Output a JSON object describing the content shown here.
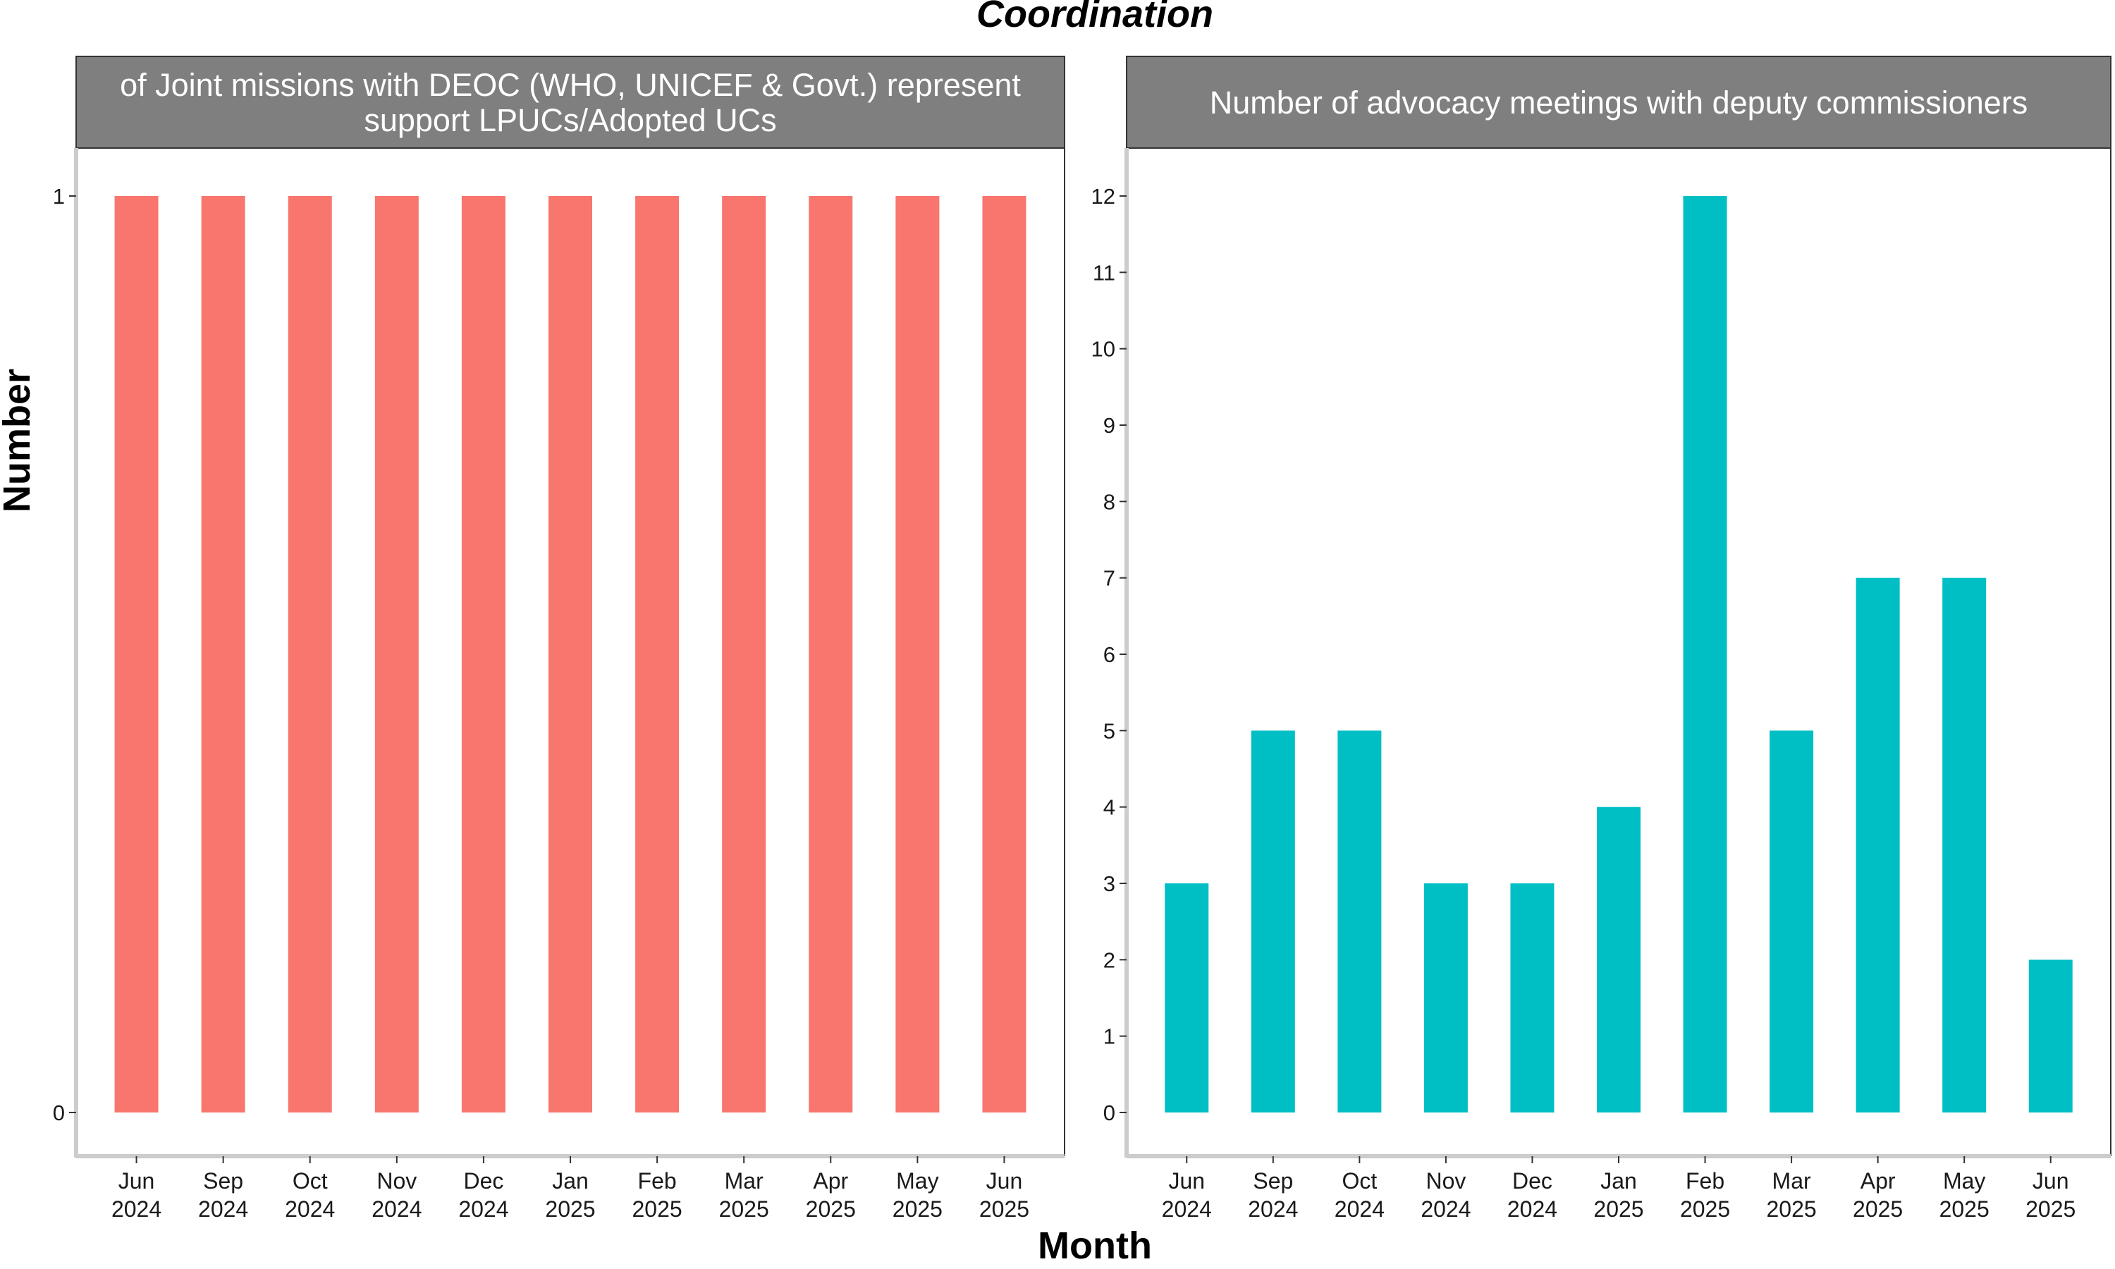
{
  "figure": {
    "title": "Coordination",
    "xlabel": "Month",
    "ylabel": "Number"
  },
  "chart_data": [
    {
      "type": "bar",
      "title_lines": [
        "of Joint missions with DEOC (WHO, UNICEF & Govt.) represent",
        "support LPUCs/Adopted UCs"
      ],
      "categories": [
        [
          "Jun",
          "2024"
        ],
        [
          "Sep",
          "2024"
        ],
        [
          "Oct",
          "2024"
        ],
        [
          "Nov",
          "2024"
        ],
        [
          "Dec",
          "2024"
        ],
        [
          "Jan",
          "2025"
        ],
        [
          "Feb",
          "2025"
        ],
        [
          "Mar",
          "2025"
        ],
        [
          "Apr",
          "2025"
        ],
        [
          "May",
          "2025"
        ],
        [
          "Jun",
          "2025"
        ]
      ],
      "values": [
        1,
        1,
        1,
        1,
        1,
        1,
        1,
        1,
        1,
        1,
        1
      ],
      "ylim": [
        0,
        1
      ],
      "yticks": [
        0,
        1
      ],
      "color": "#F8766D",
      "grid": false,
      "legend": "none"
    },
    {
      "type": "bar",
      "title_lines": [
        "Number of advocacy meetings with deputy commissioners"
      ],
      "categories": [
        [
          "Jun",
          "2024"
        ],
        [
          "Sep",
          "2024"
        ],
        [
          "Oct",
          "2024"
        ],
        [
          "Nov",
          "2024"
        ],
        [
          "Dec",
          "2024"
        ],
        [
          "Jan",
          "2025"
        ],
        [
          "Feb",
          "2025"
        ],
        [
          "Mar",
          "2025"
        ],
        [
          "Apr",
          "2025"
        ],
        [
          "May",
          "2025"
        ],
        [
          "Jun",
          "2025"
        ]
      ],
      "values": [
        3,
        5,
        5,
        3,
        3,
        4,
        12,
        5,
        7,
        7,
        2
      ],
      "ylim": [
        0,
        12
      ],
      "yticks": [
        0,
        1,
        2,
        3,
        4,
        5,
        6,
        7,
        8,
        9,
        10,
        11,
        12
      ],
      "color": "#00BFC4",
      "grid": false,
      "legend": "none"
    }
  ]
}
